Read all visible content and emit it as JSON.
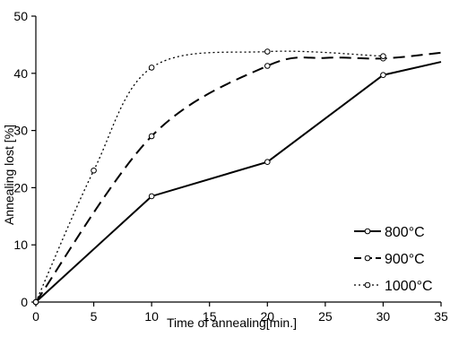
{
  "chart_data": {
    "type": "line",
    "xlabel": "Time of annealing[min.]",
    "ylabel": "Annealing lost [%]",
    "xlim": [
      0,
      35
    ],
    "ylim": [
      0,
      50
    ],
    "xticks": [
      0,
      5,
      10,
      15,
      20,
      25,
      30,
      35
    ],
    "yticks": [
      0,
      10,
      20,
      30,
      40,
      50
    ],
    "grid": false,
    "legend_position": "bottom-right",
    "series": [
      {
        "name": "800°C",
        "line_style": "solid",
        "color": "#000000",
        "x": [
          0,
          10,
          20,
          30,
          35
        ],
        "y": [
          0,
          18.5,
          24.5,
          39.7,
          42
        ],
        "markers": [
          true,
          true,
          true,
          true,
          false
        ]
      },
      {
        "name": "900°C",
        "line_style": "dashed",
        "color": "#000000",
        "x": [
          0,
          10,
          20,
          25,
          30,
          35
        ],
        "y": [
          0,
          29,
          41.3,
          42.7,
          42.6,
          43.6
        ],
        "markers": [
          true,
          true,
          true,
          false,
          true,
          false
        ]
      },
      {
        "name": "1000°C",
        "line_style": "dotted",
        "color": "#000000",
        "x": [
          0,
          5,
          10,
          20,
          30
        ],
        "y": [
          0,
          23,
          41,
          43.8,
          43
        ],
        "markers": [
          true,
          true,
          true,
          true,
          true
        ]
      }
    ]
  }
}
